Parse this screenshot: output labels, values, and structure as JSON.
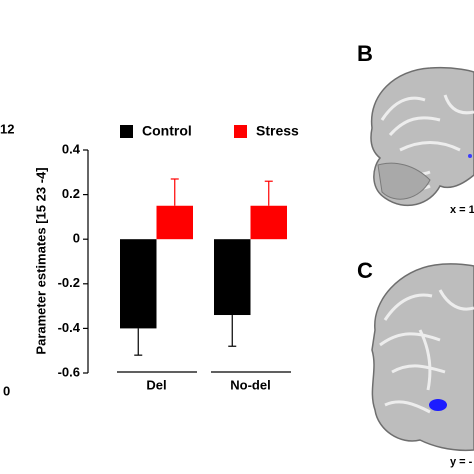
{
  "chart_data": {
    "type": "bar",
    "y_label": "Parameter estimates [15 23 -4]",
    "categories": [
      "Del",
      "No-del"
    ],
    "series": [
      {
        "name": "Control",
        "color": "#000000",
        "values": [
          -0.4,
          -0.34
        ],
        "errors": [
          0.12,
          0.14
        ]
      },
      {
        "name": "Stress",
        "color": "#ff0000",
        "values": [
          0.15,
          0.15
        ],
        "errors": [
          0.12,
          0.11
        ]
      }
    ],
    "ylim": [
      -0.6,
      0.4
    ],
    "yticks": [
      -0.6,
      -0.4,
      -0.2,
      0,
      0.2,
      0.4
    ]
  },
  "panels": [
    "B",
    "C"
  ],
  "coordinates": [
    "x = 1",
    "y = -"
  ],
  "cropped_left_texts": [
    "12",
    "0"
  ]
}
